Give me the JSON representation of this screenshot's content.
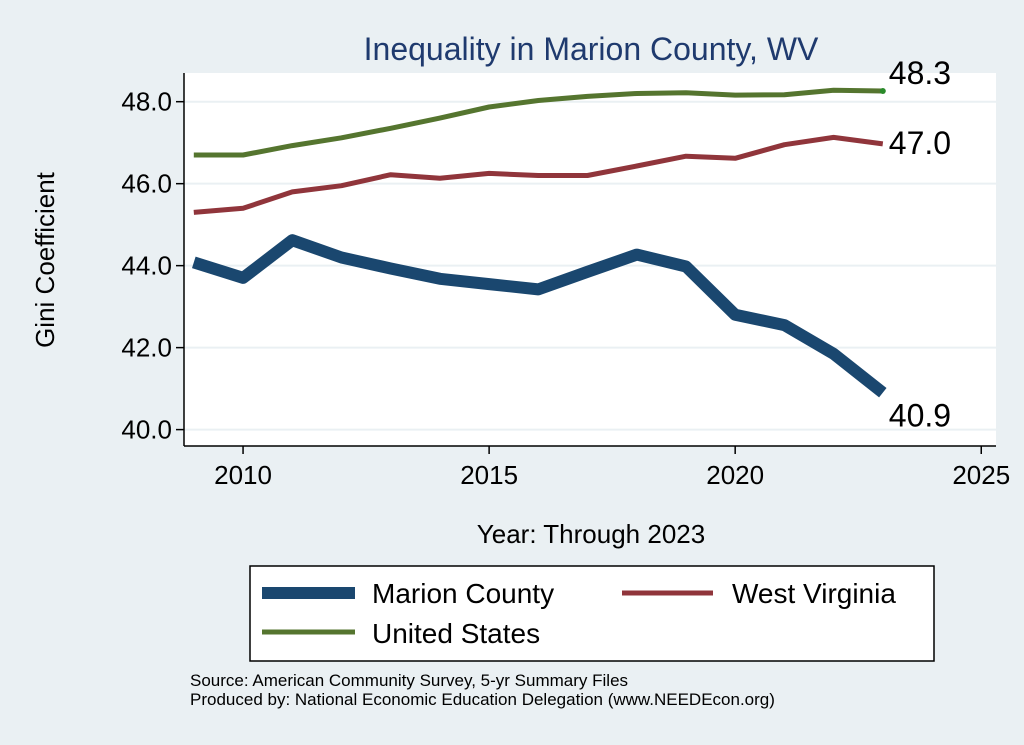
{
  "chart_data": {
    "type": "line",
    "title": "Inequality in Marion County, WV",
    "xlabel": "Year: Through 2023",
    "ylabel": "Gini Coefficient",
    "xlim": [
      2008.8,
      2025.3
    ],
    "ylim": [
      39.6,
      48.7
    ],
    "x_ticks": [
      2010,
      2015,
      2020,
      2025
    ],
    "x_tick_labels": [
      "2010",
      "2015",
      "2020",
      "2025"
    ],
    "y_ticks": [
      40,
      42,
      44,
      46,
      48
    ],
    "y_tick_labels": [
      "40.0",
      "42.0",
      "44.0",
      "46.0",
      "48.0"
    ],
    "grid": true,
    "legend_position": "bottom",
    "x": [
      2009,
      2010,
      2011,
      2012,
      2013,
      2014,
      2015,
      2016,
      2017,
      2018,
      2019,
      2020,
      2021,
      2022,
      2023
    ],
    "series": [
      {
        "name": "Marion County",
        "color": "#1a476f",
        "values": [
          44.08,
          43.7,
          44.62,
          44.2,
          43.93,
          43.68,
          43.55,
          43.42,
          43.85,
          44.27,
          43.98,
          42.8,
          42.55,
          41.85,
          40.9
        ],
        "end_label": "40.9"
      },
      {
        "name": "West Virginia",
        "color": "#90353b",
        "values": [
          45.3,
          45.4,
          45.8,
          45.95,
          46.22,
          46.13,
          46.25,
          46.2,
          46.2,
          46.43,
          46.67,
          46.62,
          46.95,
          47.13,
          46.97
        ],
        "end_label": "47.0"
      },
      {
        "name": "United States",
        "color": "#55752f",
        "values": [
          46.7,
          46.7,
          46.93,
          47.12,
          47.35,
          47.6,
          47.87,
          48.03,
          48.13,
          48.2,
          48.22,
          48.16,
          48.17,
          48.28,
          48.26
        ],
        "end_label": "48.3"
      }
    ]
  },
  "source": {
    "line1": "Source: American Community Survey, 5-yr Summary Files",
    "line2": "Produced by: National Economic Education Delegation (www.NEEDEcon.org)"
  }
}
